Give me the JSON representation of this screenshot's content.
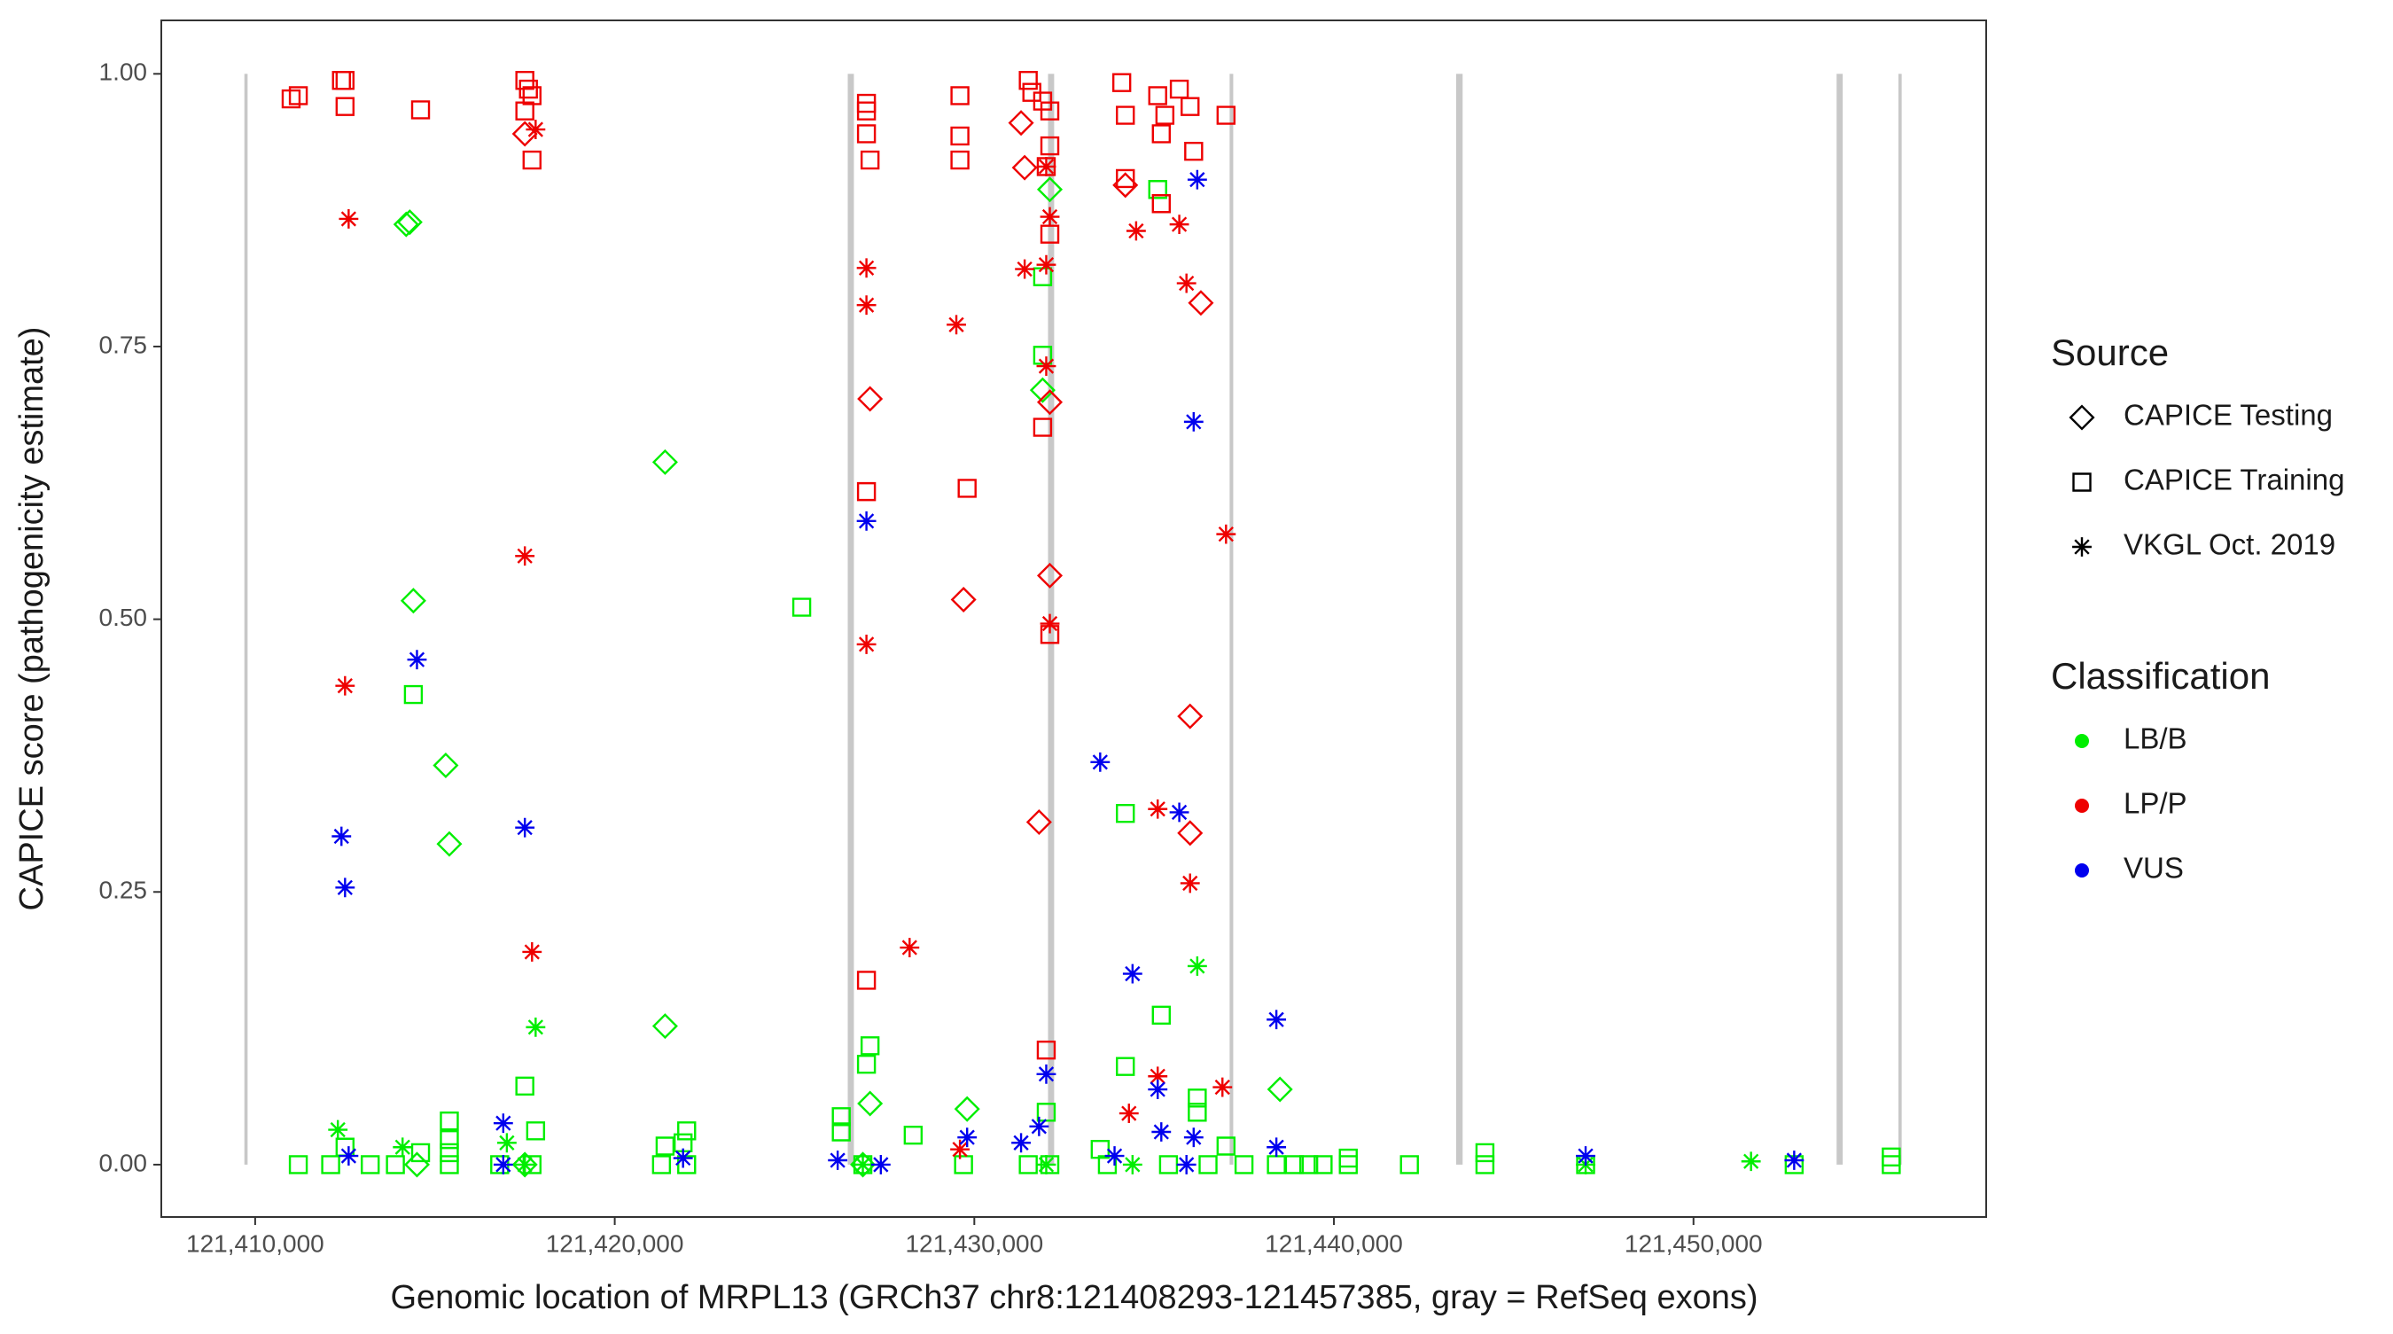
{
  "chart_data": {
    "type": "scatter",
    "x_label": "Genomic location of MRPL13 (GRCh37 chr8:121408293-121457385, gray = RefSeq exons)",
    "y_label": "CAPICE score (pathogenicity estimate)",
    "xlim": [
      121407390,
      121458140
    ],
    "ylim": [
      -0.048,
      1.049
    ],
    "xticks": [
      {
        "value": 121410000,
        "label": "121,410,000"
      },
      {
        "value": 121420000,
        "label": "121,420,000"
      },
      {
        "value": 121430000,
        "label": "121,430,000"
      },
      {
        "value": 121440000,
        "label": "121,440,000"
      },
      {
        "value": 121450000,
        "label": "121,450,000"
      }
    ],
    "yticks": [
      {
        "value": 0,
        "label": "0.00"
      },
      {
        "value": 0.25,
        "label": "0.25"
      },
      {
        "value": 0.5,
        "label": "0.50"
      },
      {
        "value": 0.75,
        "label": "0.75"
      },
      {
        "value": 1,
        "label": "1.00"
      }
    ],
    "exon_color": "#c8c8c8",
    "exons": [
      [
        121409700,
        121409790
      ],
      [
        121426480,
        121426650
      ],
      [
        121432050,
        121432220
      ],
      [
        121437100,
        121437200
      ],
      [
        121443400,
        121443580
      ],
      [
        121453980,
        121454150
      ],
      [
        121455700,
        121455790
      ]
    ],
    "source_legend": {
      "title": "Source",
      "items": [
        {
          "name": "CAPICE Testing",
          "shape": "diamond"
        },
        {
          "name": "CAPICE Training",
          "shape": "square"
        },
        {
          "name": "VKGL Oct. 2019",
          "shape": "asterisk"
        }
      ]
    },
    "classification_legend": {
      "title": "Classification",
      "items": [
        {
          "name": "LB/B",
          "color": "#00ee00"
        },
        {
          "name": "LP/P",
          "color": "#ee0000"
        },
        {
          "name": "VUS",
          "color": "#0000ee"
        }
      ]
    },
    "series": [
      {
        "shape": "square",
        "color": "#00ee00",
        "x": [
          121414400,
          121425200,
          121435100,
          121431900,
          121431900,
          121435200,
          121434200,
          121427100,
          121427000,
          121434200,
          121417500,
          121436200,
          121436200,
          121426300,
          121426300,
          121428300,
          121415400,
          121415400,
          121415400,
          121417800,
          121422000,
          121421900,
          121421400,
          121412500,
          121442100,
          121444200,
          121444200,
          121440400,
          121440400,
          121439700,
          121439300,
          121438900,
          121438400,
          121437500,
          121437000,
          121433500,
          121432000,
          121455500,
          121455500,
          121452800,
          121447000,
          121411200,
          121412100,
          121413200,
          121413900,
          121414600,
          121415400,
          121421300,
          121422000,
          121426900,
          121429700,
          121431500,
          121432100,
          121433700,
          121435400,
          121436500,
          121417700,
          121416800
        ],
        "y": [
          0.431,
          0.511,
          0.894,
          0.814,
          0.742,
          0.137,
          0.322,
          0.109,
          0.092,
          0.09,
          0.072,
          0.061,
          0.048,
          0.044,
          0.03,
          0.027,
          0.04,
          0.023,
          0.011,
          0.031,
          0.031,
          0.02,
          0.017,
          0.016,
          0,
          0.011,
          0,
          0.006,
          0,
          0,
          0,
          0,
          0,
          0,
          0.017,
          0.014,
          0.048,
          0.007,
          0,
          0,
          0,
          0,
          0,
          0,
          0,
          0.011,
          0,
          0,
          0,
          0,
          0,
          0,
          0,
          0,
          0,
          0,
          0,
          0
        ]
      },
      {
        "shape": "diamond",
        "color": "#00ee00",
        "x": [
          121414200,
          121414300,
          121414400,
          121415300,
          121415400,
          121421400,
          121421400,
          121432100,
          121431900,
          121427100,
          121429800,
          121438500,
          121414500,
          121417500,
          121426900
        ],
        "y": [
          0.862,
          0.864,
          0.517,
          0.366,
          0.294,
          0.644,
          0.127,
          0.894,
          0.71,
          0.056,
          0.051,
          0.069,
          0,
          0,
          0
        ]
      },
      {
        "shape": "asterisk",
        "color": "#00ee00",
        "x": [
          121412300,
          121417800,
          121436200,
          121414100,
          121417000,
          121451600,
          121447000,
          121426900,
          121434400,
          121417500,
          121432000
        ],
        "y": [
          0.032,
          0.126,
          0.182,
          0.016,
          0.02,
          0.003,
          0,
          0,
          0,
          0,
          0
        ]
      },
      {
        "shape": "square",
        "color": "#ee0000",
        "x": [
          121411000,
          121411200,
          121412400,
          121412500,
          121412500,
          121414600,
          121417500,
          121417600,
          121417700,
          121417500,
          121417700,
          121427000,
          121427000,
          121427000,
          121427100,
          121429600,
          121429600,
          121429600,
          121431500,
          121431600,
          121431900,
          121432100,
          121432100,
          121432100,
          121431900,
          121432100,
          121434100,
          121434200,
          121435100,
          121435300,
          121435200,
          121435700,
          121436000,
          121436100,
          121437000,
          121427000,
          121429800,
          121427000,
          121432000,
          121434200,
          121435200,
          121432000
        ],
        "y": [
          0.977,
          0.98,
          0.994,
          0.994,
          0.97,
          0.967,
          0.994,
          0.986,
          0.98,
          0.966,
          0.921,
          0.973,
          0.966,
          0.945,
          0.921,
          0.98,
          0.943,
          0.921,
          0.994,
          0.983,
          0.975,
          0.966,
          0.934,
          0.853,
          0.676,
          0.486,
          0.992,
          0.962,
          0.98,
          0.962,
          0.945,
          0.986,
          0.97,
          0.929,
          0.962,
          0.617,
          0.62,
          0.169,
          0.105,
          0.904,
          0.881,
          0.915
        ]
      },
      {
        "shape": "diamond",
        "color": "#ee0000",
        "x": [
          121417500,
          121431300,
          121431400,
          121434200,
          121436300,
          121427100,
          121432100,
          121432100,
          121429700,
          121431800,
          121436000,
          121436000
        ],
        "y": [
          0.945,
          0.955,
          0.914,
          0.898,
          0.79,
          0.702,
          0.699,
          0.54,
          0.518,
          0.314,
          0.411,
          0.304
        ]
      },
      {
        "shape": "asterisk",
        "color": "#ee0000",
        "x": [
          121417800,
          121412600,
          121427000,
          121427000,
          121429500,
          121431400,
          121432000,
          121432100,
          121434500,
          121435700,
          121435900,
          121432000,
          121437000,
          121417500,
          121412500,
          121427000,
          121432100,
          121435100,
          121436000,
          121417700,
          121428200,
          121434300,
          121435100,
          121436900,
          121429600,
          121432000
        ],
        "y": [
          0.949,
          0.867,
          0.822,
          0.788,
          0.77,
          0.821,
          0.825,
          0.869,
          0.856,
          0.862,
          0.808,
          0.732,
          0.578,
          0.558,
          0.439,
          0.477,
          0.496,
          0.326,
          0.258,
          0.195,
          0.199,
          0.047,
          0.081,
          0.071,
          0.014,
          0.915
        ]
      },
      {
        "shape": "asterisk",
        "color": "#0000ee",
        "x": [
          121412400,
          121412500,
          121414500,
          121417500,
          121427000,
          121436100,
          121436200,
          121433500,
          121435700,
          121434400,
          121438400,
          121435100,
          121432000,
          121416900,
          121412600,
          121421900,
          121426200,
          121427400,
          121429800,
          121431300,
          121431800,
          121435200,
          121436100,
          121438400,
          121447000,
          121452800,
          121416900,
          121433900,
          121435900
        ],
        "y": [
          0.301,
          0.254,
          0.463,
          0.309,
          0.59,
          0.681,
          0.903,
          0.369,
          0.323,
          0.175,
          0.133,
          0.069,
          0.083,
          0.038,
          0.008,
          0.006,
          0.004,
          0,
          0.025,
          0.02,
          0.035,
          0.03,
          0.025,
          0.016,
          0.008,
          0.004,
          0,
          0.008,
          0
        ]
      }
    ]
  }
}
